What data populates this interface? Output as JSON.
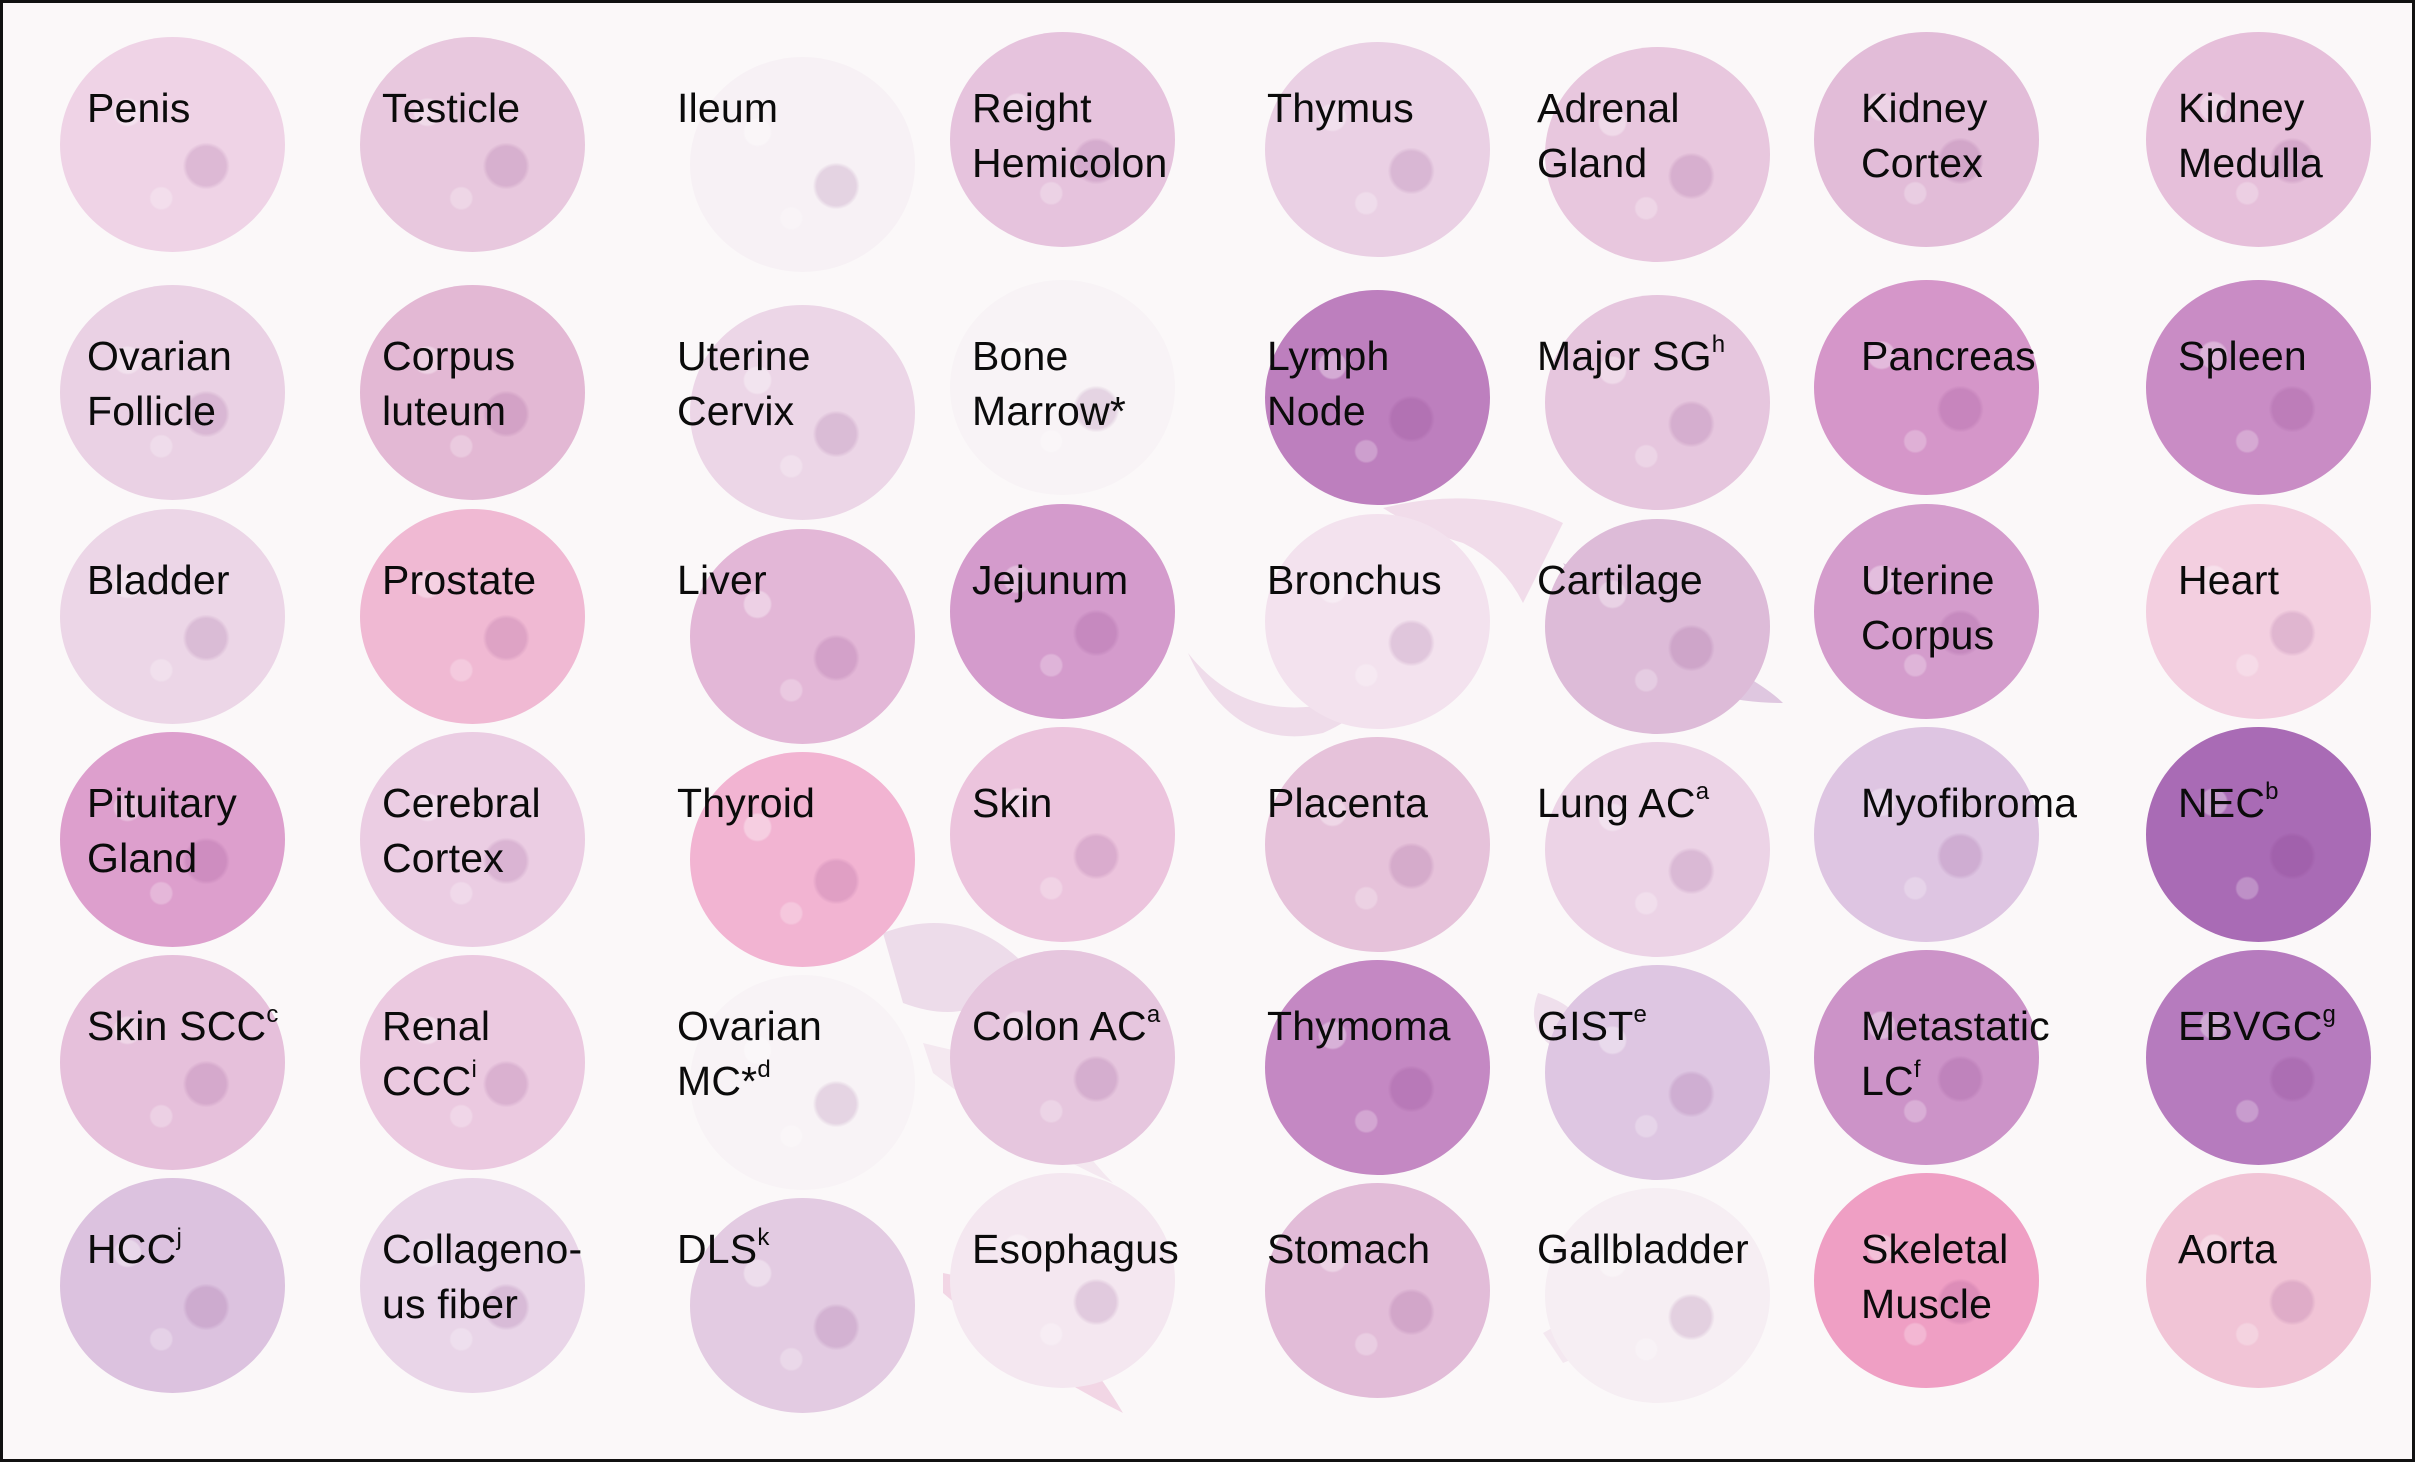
{
  "cells": [
    {
      "text": "Penis",
      "sup": "",
      "color": "#efd3e6"
    },
    {
      "text": "Testicle",
      "sup": "",
      "color": "#e8c8de"
    },
    {
      "text": "Ileum",
      "sup": "",
      "color": "#f7f1f5"
    },
    {
      "text": "Reight\nHemicolon",
      "sup": "",
      "color": "#e6c3dd"
    },
    {
      "text": "Thymus",
      "sup": "",
      "color": "#ead0e4"
    },
    {
      "text": "Adrenal\nGland",
      "sup": "",
      "color": "#e8c7de"
    },
    {
      "text": "Kidney\nCortex",
      "sup": "",
      "color": "#e2bcd8"
    },
    {
      "text": "Kidney\nMedulla",
      "sup": "",
      "color": "#e6bfda"
    },
    {
      "text": "Ovarian\nFollicle",
      "sup": "",
      "color": "#ead1e4"
    },
    {
      "text": "Corpus\nluteum",
      "sup": "",
      "color": "#e3b8d4"
    },
    {
      "text": "Uterine\nCervix",
      "sup": "",
      "color": "#ecd6e7"
    },
    {
      "text": "Bone\nMarrow*",
      "sup": "",
      "color": "#f8f3f6"
    },
    {
      "text": "Lymph\nNode",
      "sup": "",
      "color": "#bd7fbe"
    },
    {
      "text": "Major SG",
      "sup": "h",
      "color": "#e6c6de"
    },
    {
      "text": "Pancreas",
      "sup": "",
      "color": "#d596c9"
    },
    {
      "text": "Spleen",
      "sup": "",
      "color": "#c98cc5"
    },
    {
      "text": "Bladder",
      "sup": "",
      "color": "#ecd6e7"
    },
    {
      "text": "Prostate",
      "sup": "",
      "color": "#f0b9d3"
    },
    {
      "text": "Liver",
      "sup": "",
      "color": "#e3b7d7"
    },
    {
      "text": "Jejunum",
      "sup": "",
      "color": "#d49bcc"
    },
    {
      "text": "Bronchus",
      "sup": "",
      "color": "#f3e2ee"
    },
    {
      "text": "Cartilage",
      "sup": "",
      "color": "#ddbbd8"
    },
    {
      "text": "Uterine\nCorpus",
      "sup": "",
      "color": "#d49ccc"
    },
    {
      "text": "Heart",
      "sup": "",
      "color": "#f3cfe0"
    },
    {
      "text": "Pituitary\nGland",
      "sup": "",
      "color": "#dd9fcd"
    },
    {
      "text": "Cerebral\nCortex",
      "sup": "",
      "color": "#ebcde3"
    },
    {
      "text": "Thyroid",
      "sup": "",
      "color": "#f2b4d2"
    },
    {
      "text": "Skin",
      "sup": "",
      "color": "#ecc4dd"
    },
    {
      "text": "Placenta",
      "sup": "",
      "color": "#e6c2da"
    },
    {
      "text": "Lung AC",
      "sup": "a",
      "color": "#ecd3e6"
    },
    {
      "text": "Myofibroma",
      "sup": "",
      "color": "#dec5e2"
    },
    {
      "text": "NEC",
      "sup": "b",
      "color": "#a96bb5"
    },
    {
      "text": "Skin SCC",
      "sup": "c",
      "color": "#e6c0db"
    },
    {
      "text": "Renal\nCCC",
      "sup": "i",
      "color": "#ebc9e0"
    },
    {
      "text": "Ovarian\nMC*",
      "sup": "d",
      "color": "#f8f3f6"
    },
    {
      "text": "Colon AC",
      "sup": "a",
      "color": "#e6c6de"
    },
    {
      "text": "Thymoma",
      "sup": "",
      "color": "#c488c3"
    },
    {
      "text": "GIST",
      "sup": "e",
      "color": "#dec6e2"
    },
    {
      "text": "Metastatic\nLC",
      "sup": "f",
      "color": "#cc93c8"
    },
    {
      "text": "EBVGC",
      "sup": "g",
      "color": "#b67bbe"
    },
    {
      "text": "HCC",
      "sup": "j",
      "color": "#dcc2df"
    },
    {
      "text": "Collageno-\nus fiber",
      "sup": "",
      "color": "#e9d5e8"
    },
    {
      "text": "DLS",
      "sup": "k",
      "color": "#e3cbe2"
    },
    {
      "text": "Esophagus",
      "sup": "",
      "color": "#f4e7f0"
    },
    {
      "text": "Stomach",
      "sup": "",
      "color": "#e2bcd8"
    },
    {
      "text": "Gallbladder",
      "sup": "",
      "color": "#f6eef3"
    },
    {
      "text": "Skeletal\nMuscle",
      "sup": "",
      "color": "#ef9fc4"
    },
    {
      "text": "Aorta",
      "sup": "",
      "color": "#f1c4d6"
    }
  ]
}
